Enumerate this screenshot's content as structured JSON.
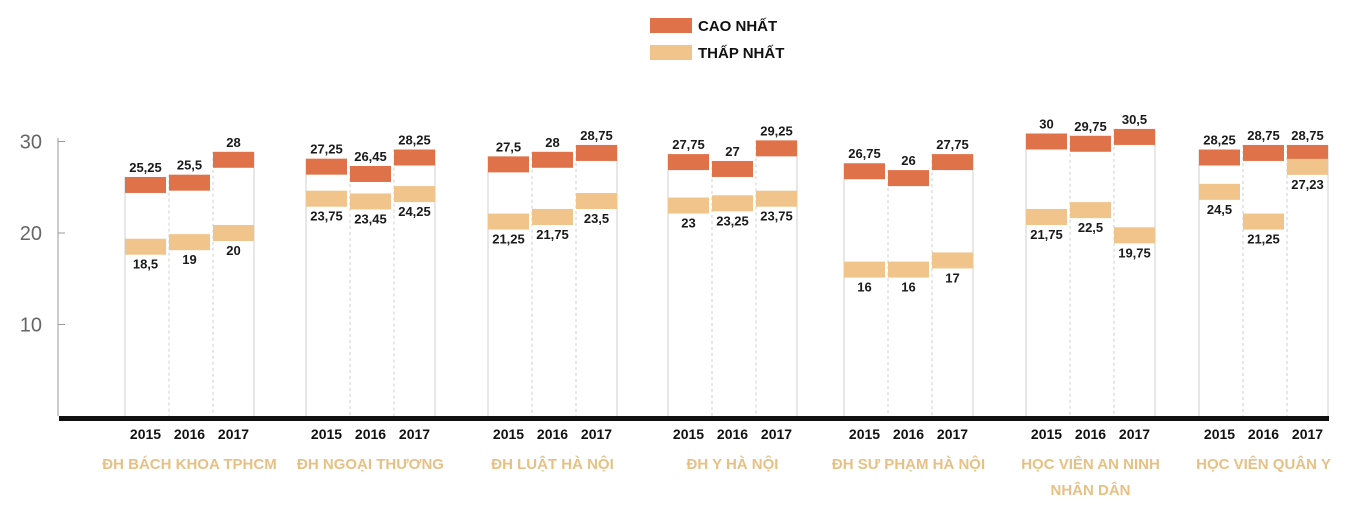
{
  "chart_data": {
    "type": "bar",
    "legend": [
      {
        "name": "CAO NHẤT",
        "color": "#e0724a"
      },
      {
        "name": "THẤP NHẤT",
        "color": "#f0c48a"
      }
    ],
    "legend_position": "top-center",
    "y_ticks": [
      10,
      20,
      30
    ],
    "ylim": [
      0,
      32
    ],
    "grid": false,
    "groups": [
      {
        "name": [
          "ĐH BÁCH KHOA TPHCM"
        ],
        "years": [
          "2015",
          "2016",
          "2017"
        ],
        "high": [
          25.25,
          25.5,
          28
        ],
        "low": [
          18.5,
          19,
          20
        ],
        "high_labels": [
          "25,25",
          "25,5",
          "28"
        ],
        "low_labels": [
          "18,5",
          "19",
          "20"
        ]
      },
      {
        "name": [
          "ĐH NGOẠI THƯƠNG"
        ],
        "years": [
          "2015",
          "2016",
          "2017"
        ],
        "high": [
          27.25,
          26.45,
          28.25
        ],
        "low": [
          23.75,
          23.45,
          24.25
        ],
        "high_labels": [
          "27,25",
          "26,45",
          "28,25"
        ],
        "low_labels": [
          "23,75",
          "23,45",
          "24,25"
        ]
      },
      {
        "name": [
          "ĐH LUẬT HÀ NỘI"
        ],
        "years": [
          "2015",
          "2016",
          "2017"
        ],
        "high": [
          27.5,
          28,
          28.75
        ],
        "low": [
          21.25,
          21.75,
          23.5
        ],
        "high_labels": [
          "27,5",
          "28",
          "28,75"
        ],
        "low_labels": [
          "21,25",
          "21,75",
          "23,5"
        ]
      },
      {
        "name": [
          "ĐH Y HÀ NỘI"
        ],
        "years": [
          "2015",
          "2016",
          "2017"
        ],
        "high": [
          27.75,
          27,
          29.25
        ],
        "low": [
          23,
          23.25,
          23.75
        ],
        "high_labels": [
          "27,75",
          "27",
          "29,25"
        ],
        "low_labels": [
          "23",
          "23,25",
          "23,75"
        ]
      },
      {
        "name": [
          "ĐH SƯ PHẠM HÀ NỘI"
        ],
        "years": [
          "2015",
          "2016",
          "2017"
        ],
        "high": [
          26.75,
          26,
          27.75
        ],
        "low": [
          16,
          16,
          17
        ],
        "high_labels": [
          "26,75",
          "26",
          "27,75"
        ],
        "low_labels": [
          "16",
          "16",
          "17"
        ]
      },
      {
        "name": [
          "HỌC VIÊN AN NINH",
          "NHÂN DÂN"
        ],
        "years": [
          "2015",
          "2016",
          "2017"
        ],
        "high": [
          30,
          29.75,
          30.5
        ],
        "low": [
          21.75,
          22.5,
          19.75
        ],
        "high_labels": [
          "30",
          "29,75",
          "30,5"
        ],
        "low_labels": [
          "21,75",
          "22,5",
          "19,75"
        ]
      },
      {
        "name": [
          "HỌC VIÊN QUÂN Y"
        ],
        "years": [
          "2015",
          "2016",
          "2017"
        ],
        "high": [
          28.25,
          28.75,
          28.75
        ],
        "low": [
          24.5,
          21.25,
          27.23
        ],
        "high_labels": [
          "28,25",
          "28,75",
          "28,75"
        ],
        "low_labels": [
          "24,5",
          "21,25",
          "27,23"
        ]
      }
    ]
  }
}
